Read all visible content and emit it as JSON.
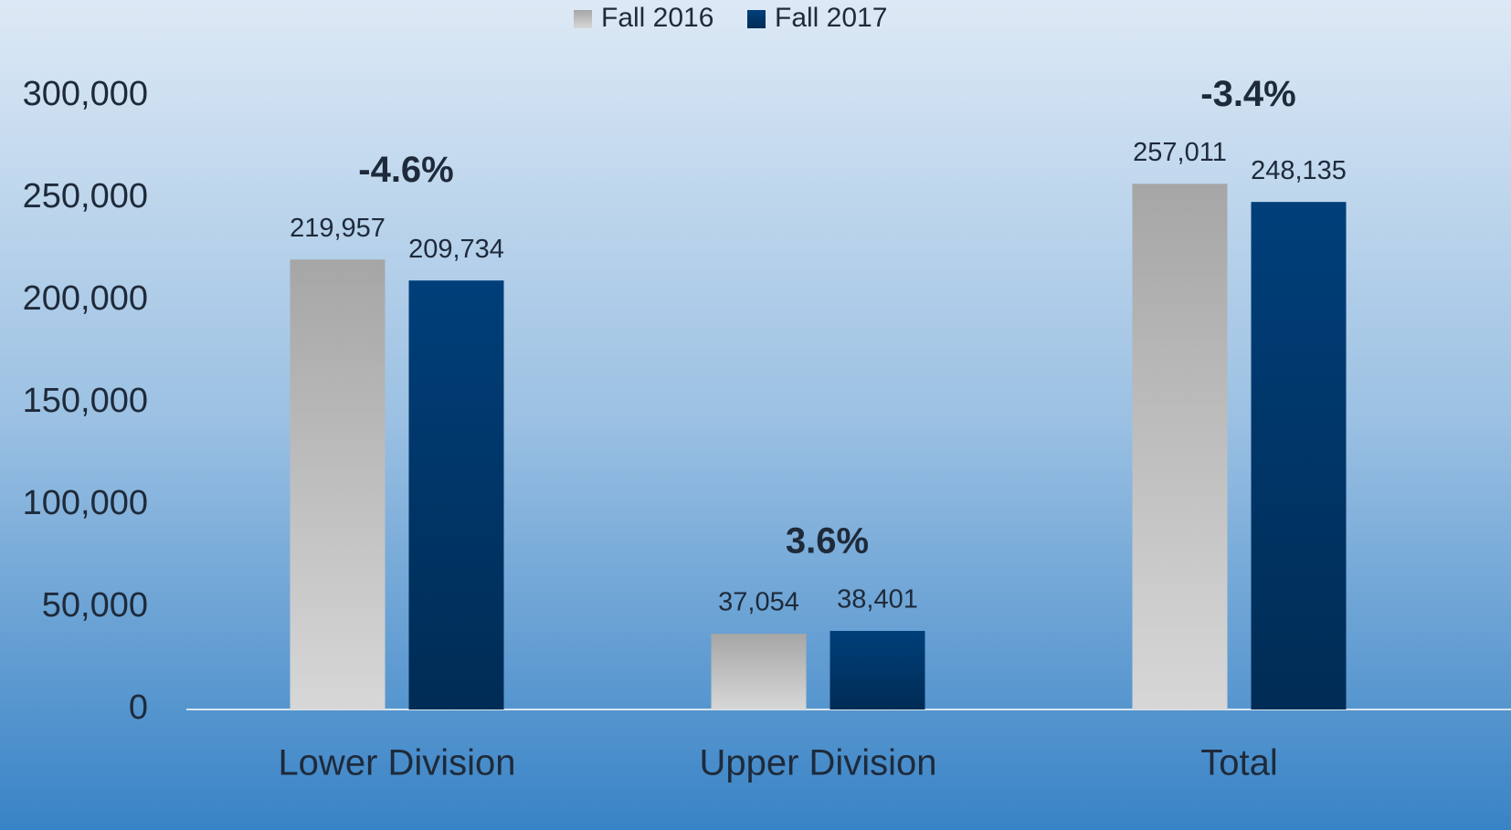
{
  "chart_data": {
    "type": "bar",
    "categories": [
      "Lower Division",
      "Upper Division",
      "Total"
    ],
    "series": [
      {
        "name": "Fall 2016",
        "color": "#a6a6a6",
        "values": [
          219957,
          37054,
          257011
        ],
        "value_labels": [
          "219,957",
          "37,054",
          "257,011"
        ]
      },
      {
        "name": "Fall 2017",
        "color": "#003f7a",
        "values": [
          209734,
          38401,
          248135
        ],
        "value_labels": [
          "209,734",
          "38,401",
          "248,135"
        ]
      }
    ],
    "annotations": [
      "-4.6%",
      "3.6%",
      "-3.4%"
    ],
    "ylim": [
      0,
      300000
    ],
    "yticks": [
      0,
      {
        "value": 50000,
        "label": "50,000"
      },
      {
        "value": 100000,
        "label": "100,000"
      },
      {
        "value": 150000,
        "label": "150,000"
      },
      {
        "value": 200000,
        "label": "200,000"
      },
      {
        "value": 250000,
        "label": "250,000"
      },
      {
        "value": 300000,
        "label": "300,000"
      }
    ],
    "legend": "top"
  }
}
